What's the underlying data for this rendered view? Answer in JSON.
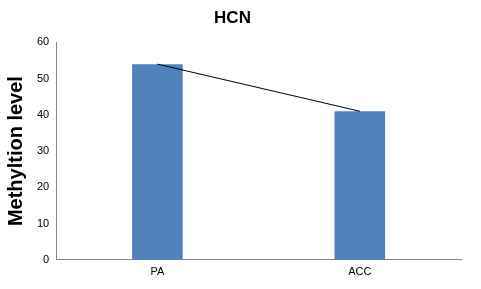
{
  "chart_data": {
    "type": "bar",
    "title": "HCN",
    "y_label": "Methyltion level",
    "categories": [
      "PA",
      "ACC"
    ],
    "series": [
      {
        "type": "bar",
        "color": "#4f81bd",
        "values": [
          54,
          41
        ]
      },
      {
        "type": "line",
        "color": "#000000",
        "marker": "none",
        "values": [
          54,
          41
        ]
      }
    ],
    "ylim": [
      0,
      60
    ],
    "yticks": [
      0,
      10,
      20,
      30,
      40,
      50,
      60
    ],
    "grid": false
  }
}
